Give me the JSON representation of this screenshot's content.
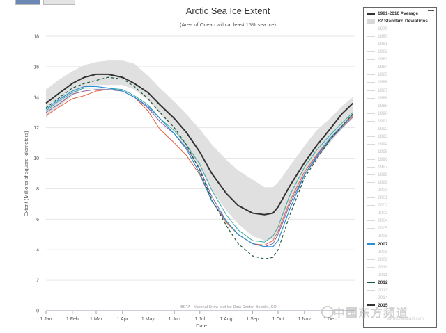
{
  "toolbar": {
    "button_a": "",
    "button_b": ""
  },
  "chart_data": {
    "type": "line",
    "title": "Arctic Sea Ice Extent",
    "subtitle": "(Area of Ocean with at least 15% sea ice)",
    "xlabel": "Date",
    "ylabel": "Extent (Millions of square kilometers)",
    "credit": "BETA - National Snow and Ice Data Center, Boulder, CO",
    "ylim": [
      0,
      18
    ],
    "yticks": [
      0,
      2,
      4,
      6,
      8,
      10,
      12,
      14,
      16,
      18
    ],
    "xlim": [
      1,
      365
    ],
    "xticks": [
      {
        "day": 1,
        "label": "1 Jan"
      },
      {
        "day": 32,
        "label": "1 Feb"
      },
      {
        "day": 60,
        "label": "1 Mar"
      },
      {
        "day": 91,
        "label": "1 Apr"
      },
      {
        "day": 121,
        "label": "1 May"
      },
      {
        "day": 152,
        "label": "1 Jun"
      },
      {
        "day": 182,
        "label": "1 Jul"
      },
      {
        "day": 213,
        "label": "1 Aug"
      },
      {
        "day": 244,
        "label": "1 Sep"
      },
      {
        "day": 274,
        "label": "1 Oct"
      },
      {
        "day": 305,
        "label": "1 Nov"
      },
      {
        "day": 335,
        "label": "1 Dec"
      }
    ],
    "grid": true,
    "legend_position": "right",
    "band": {
      "name": "±2 Standard Deviations",
      "color": "#e0e0e0",
      "x": [
        1,
        15,
        32,
        46,
        60,
        74,
        91,
        105,
        121,
        135,
        152,
        166,
        182,
        196,
        213,
        227,
        244,
        258,
        268,
        274,
        288,
        305,
        319,
        335,
        349,
        362
      ],
      "upper": [
        14.5,
        15.1,
        15.7,
        16.1,
        16.3,
        16.4,
        16.4,
        16.2,
        15.4,
        14.6,
        13.7,
        12.9,
        11.9,
        10.9,
        9.9,
        9.2,
        8.6,
        8.1,
        8.1,
        8.4,
        9.5,
        10.8,
        11.8,
        12.6,
        13.4,
        14.0
      ],
      "lower": [
        12.7,
        13.3,
        14.1,
        14.6,
        14.8,
        14.8,
        14.8,
        14.5,
        13.8,
        12.9,
        11.8,
        10.7,
        9.4,
        7.9,
        6.6,
        5.7,
        4.9,
        4.6,
        4.7,
        5.1,
        7.0,
        8.8,
        9.9,
        11.0,
        11.9,
        12.6
      ]
    },
    "series": [
      {
        "name": "1981-2010 Average",
        "color": "#333333",
        "width": 2,
        "dash": "",
        "x": [
          1,
          15,
          32,
          46,
          60,
          74,
          91,
          105,
          121,
          135,
          152,
          166,
          182,
          196,
          213,
          227,
          244,
          258,
          268,
          274,
          288,
          305,
          319,
          335,
          349,
          362
        ],
        "y": [
          13.6,
          14.2,
          14.9,
          15.3,
          15.5,
          15.5,
          15.3,
          14.9,
          14.3,
          13.5,
          12.6,
          11.7,
          10.4,
          9.0,
          7.7,
          6.9,
          6.4,
          6.3,
          6.4,
          6.8,
          8.2,
          9.7,
          10.8,
          11.9,
          12.9,
          13.6
        ]
      },
      {
        "name": "unlabeled-red",
        "color": "#e2623f",
        "width": 1,
        "dash": "",
        "x": [
          1,
          15,
          32,
          46,
          60,
          74,
          91,
          105,
          121,
          135,
          152,
          166,
          182,
          196,
          213,
          227,
          244,
          258,
          268,
          274,
          288,
          305,
          319,
          335,
          349,
          362
        ],
        "y": [
          12.8,
          13.3,
          13.9,
          14.1,
          14.4,
          14.5,
          14.4,
          14.0,
          13.1,
          11.9,
          11.0,
          10.2,
          8.9,
          7.2,
          5.8,
          5.0,
          4.4,
          4.3,
          4.6,
          5.2,
          7.2,
          9.1,
          10.2,
          11.3,
          12.1,
          12.8
        ]
      },
      {
        "name": "unlabeled-purple",
        "color": "#8a5ea0",
        "width": 1,
        "dash": "",
        "x": [
          1,
          15,
          32,
          46,
          60,
          74,
          91,
          105,
          121,
          135,
          152,
          166,
          182,
          196,
          213,
          227,
          244,
          258,
          268,
          274,
          288,
          305,
          319,
          335,
          349,
          362
        ],
        "y": [
          13.0,
          13.5,
          14.2,
          14.4,
          14.5,
          14.5,
          14.4,
          14.0,
          13.3,
          12.4,
          11.6,
          10.7,
          9.3,
          7.5,
          5.9,
          5.0,
          4.4,
          4.2,
          4.4,
          5.0,
          7.0,
          8.9,
          10.0,
          11.2,
          12.0,
          12.7
        ]
      },
      {
        "name": "unlabeled-teal",
        "color": "#3aa9a0",
        "width": 1,
        "dash": "",
        "x": [
          1,
          15,
          32,
          46,
          60,
          74,
          91,
          105,
          121,
          135,
          152,
          166,
          182,
          196,
          213,
          227,
          244,
          258,
          268,
          274,
          288,
          305,
          319,
          335,
          349,
          362
        ],
        "y": [
          13.1,
          13.7,
          14.3,
          14.6,
          14.6,
          14.6,
          14.5,
          14.1,
          13.5,
          12.6,
          11.8,
          10.9,
          9.6,
          7.9,
          6.3,
          5.3,
          4.6,
          4.5,
          4.9,
          5.5,
          7.6,
          9.4,
          10.5,
          11.5,
          12.3,
          13.0
        ]
      },
      {
        "name": "2007",
        "color": "#2b8fd6",
        "width": 1.2,
        "dash": "",
        "x": [
          1,
          15,
          32,
          46,
          60,
          74,
          91,
          105,
          121,
          135,
          152,
          166,
          182,
          196,
          213,
          227,
          244,
          258,
          268,
          274,
          288,
          305,
          319,
          335,
          349,
          362
        ],
        "y": [
          13.2,
          13.8,
          14.4,
          14.7,
          14.7,
          14.6,
          14.4,
          14.0,
          13.4,
          12.6,
          11.6,
          10.6,
          9.0,
          7.2,
          5.9,
          5.0,
          4.4,
          4.2,
          4.2,
          4.6,
          6.7,
          8.9,
          10.1,
          11.3,
          12.1,
          12.9
        ]
      },
      {
        "name": "2012",
        "color": "#1c5a3a",
        "width": 1.2,
        "dash": "4,3",
        "x": [
          1,
          15,
          32,
          46,
          60,
          74,
          91,
          105,
          121,
          135,
          152,
          166,
          182,
          196,
          213,
          227,
          244,
          258,
          268,
          274,
          288,
          305,
          319,
          335,
          349,
          362
        ],
        "y": [
          13.3,
          13.9,
          14.6,
          14.9,
          15.1,
          15.3,
          15.2,
          14.7,
          13.9,
          13.0,
          12.0,
          10.9,
          9.2,
          7.3,
          5.6,
          4.4,
          3.6,
          3.4,
          3.5,
          4.0,
          6.3,
          8.7,
          9.9,
          11.2,
          12.1,
          12.9
        ]
      }
    ]
  },
  "legend": {
    "items": [
      {
        "label": "1981-2010 Average",
        "active": true,
        "color": "#333333",
        "style": "solid"
      },
      {
        "label": "±2 Standard Deviations",
        "active": true,
        "color": "#d8d8d8",
        "style": "box"
      },
      {
        "label": "1979",
        "active": false
      },
      {
        "label": "1980",
        "active": false
      },
      {
        "label": "1981",
        "active": false
      },
      {
        "label": "1982",
        "active": false
      },
      {
        "label": "1983",
        "active": false
      },
      {
        "label": "1984",
        "active": false
      },
      {
        "label": "1985",
        "active": false
      },
      {
        "label": "1986",
        "active": false
      },
      {
        "label": "1987",
        "active": false
      },
      {
        "label": "1988",
        "active": false
      },
      {
        "label": "1989",
        "active": false
      },
      {
        "label": "1990",
        "active": false
      },
      {
        "label": "1991",
        "active": false
      },
      {
        "label": "1992",
        "active": false
      },
      {
        "label": "1993",
        "active": false
      },
      {
        "label": "1994",
        "active": false
      },
      {
        "label": "1995",
        "active": false
      },
      {
        "label": "1996",
        "active": false
      },
      {
        "label": "1997",
        "active": false
      },
      {
        "label": "1998",
        "active": false
      },
      {
        "label": "1999",
        "active": false
      },
      {
        "label": "2000",
        "active": false
      },
      {
        "label": "2001",
        "active": false
      },
      {
        "label": "2002",
        "active": false
      },
      {
        "label": "2003",
        "active": false
      },
      {
        "label": "2004",
        "active": false
      },
      {
        "label": "2005",
        "active": false
      },
      {
        "label": "2006",
        "active": false
      },
      {
        "label": "2007",
        "active": true,
        "color": "#2b8fd6",
        "style": "solid"
      },
      {
        "label": "2008",
        "active": false
      },
      {
        "label": "2009",
        "active": false
      },
      {
        "label": "2010",
        "active": false
      },
      {
        "label": "2011",
        "active": false
      },
      {
        "label": "2012",
        "active": true,
        "color": "#1c5a3a",
        "style": "dashed"
      },
      {
        "label": "2013",
        "active": false
      },
      {
        "label": "2014",
        "active": false
      },
      {
        "label": "2015",
        "active": true,
        "color": "#333333",
        "style": "solid"
      }
    ]
  },
  "watermark": {
    "text": "中国东方频道",
    "url": "www.chinaeast.com"
  }
}
